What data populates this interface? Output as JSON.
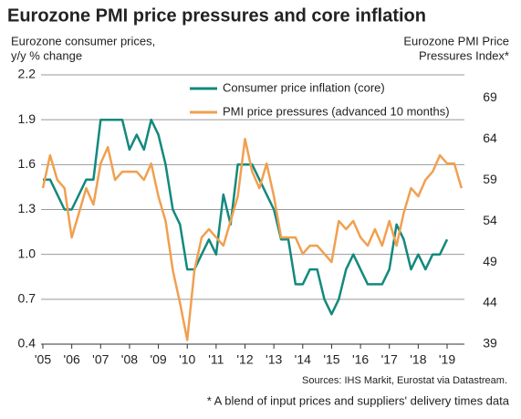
{
  "chart_data": {
    "type": "line",
    "title": "Eurozone PMI price pressures and core inflation",
    "ylabel": [
      "Eurozone consumer prices,",
      "y/y % change"
    ],
    "y2label": [
      "Eurozone PMI Price",
      "Pressures Index*"
    ],
    "source": "Sources: IHS Markit, Eurostat via Datastream.",
    "footnote": "* A blend of input prices and suppliers' delivery times data",
    "x": [
      2005,
      2005.25,
      2005.5,
      2005.75,
      2006,
      2006.25,
      2006.5,
      2006.75,
      2007,
      2007.25,
      2007.5,
      2007.75,
      2008,
      2008.25,
      2008.5,
      2008.75,
      2009,
      2009.25,
      2009.5,
      2009.75,
      2010,
      2010.25,
      2010.5,
      2010.75,
      2011,
      2011.25,
      2011.5,
      2011.75,
      2012,
      2012.25,
      2012.5,
      2012.75,
      2013,
      2013.25,
      2013.5,
      2013.75,
      2014,
      2014.25,
      2014.5,
      2014.75,
      2015,
      2015.25,
      2015.5,
      2015.75,
      2016,
      2016.25,
      2016.5,
      2016.75,
      2017,
      2017.25,
      2017.5,
      2017.75,
      2018,
      2018.25,
      2018.5,
      2018.75,
      2019,
      2019.25,
      2019.5
    ],
    "series": [
      {
        "name": "Consumer price inflation (core)",
        "color": "#13897d",
        "values": [
          1.5,
          1.5,
          1.4,
          1.3,
          1.3,
          1.4,
          1.5,
          1.5,
          1.9,
          1.9,
          1.9,
          1.9,
          1.7,
          1.8,
          1.7,
          1.9,
          1.8,
          1.6,
          1.3,
          1.2,
          0.9,
          0.9,
          1.0,
          1.1,
          1.0,
          1.4,
          1.2,
          1.6,
          1.6,
          1.6,
          1.5,
          1.4,
          1.3,
          1.1,
          1.1,
          0.8,
          0.8,
          0.9,
          0.9,
          0.7,
          0.6,
          0.7,
          0.9,
          1.0,
          0.9,
          0.8,
          0.8,
          0.8,
          0.9,
          1.2,
          1.1,
          0.9,
          1.0,
          0.9,
          1.0,
          1.0,
          1.1,
          null,
          null
        ]
      },
      {
        "name": "PMI price pressures (advanced 10 months)",
        "color": "#f0a050",
        "axis": "y2",
        "values": [
          58,
          62,
          59,
          58,
          52,
          55,
          58,
          56,
          61,
          63,
          59,
          60,
          60,
          60,
          59,
          61,
          57,
          54,
          48,
          44,
          39.5,
          48,
          52,
          53,
          52,
          51,
          54,
          57,
          64,
          60,
          58,
          61,
          57,
          52,
          52,
          52,
          50,
          51,
          51,
          50,
          49,
          54,
          53,
          54,
          52,
          51,
          53,
          51,
          54,
          51,
          55,
          58,
          57,
          59,
          60,
          62,
          61,
          61,
          58
        ]
      }
    ],
    "xlim": [
      2005,
      2019.6
    ],
    "xticks": [
      {
        "value": 2005,
        "label": "'05"
      },
      {
        "value": 2006,
        "label": "'06"
      },
      {
        "value": 2007,
        "label": "'07"
      },
      {
        "value": 2008,
        "label": "'08"
      },
      {
        "value": 2009,
        "label": "'09"
      },
      {
        "value": 2010,
        "label": "'10"
      },
      {
        "value": 2011,
        "label": "'11"
      },
      {
        "value": 2012,
        "label": "'12"
      },
      {
        "value": 2013,
        "label": "'13"
      },
      {
        "value": 2014,
        "label": "'14"
      },
      {
        "value": 2015,
        "label": "'15"
      },
      {
        "value": 2016,
        "label": "'16"
      },
      {
        "value": 2017,
        "label": "'17"
      },
      {
        "value": 2018,
        "label": "'18"
      },
      {
        "value": 2019,
        "label": "'19"
      }
    ],
    "ylim": [
      0.4,
      2.2
    ],
    "yticks": [
      0.4,
      0.7,
      {
        "value": 1,
        "label": "1.0"
      },
      1.3,
      1.6,
      1.9,
      2.2
    ],
    "y2lim": [
      39,
      71.8
    ],
    "y2ticks": [
      39,
      44,
      49,
      54,
      59,
      64,
      69
    ],
    "grid": true
  }
}
